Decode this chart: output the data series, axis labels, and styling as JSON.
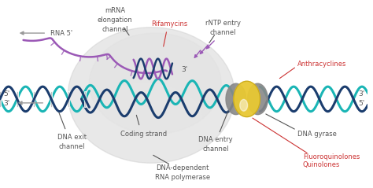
{
  "bg_color": "#f8f8f8",
  "labels": {
    "dna_exit_channel": "DNA exit\nchannel",
    "dna_dependent": "DNA-dependent\nRNA polymerase",
    "coding_strand": "Coding strand",
    "dna_entry_channel": "DNA entry\nchannel",
    "quinolones": "Quinolones",
    "fluoroquinolones": "Fluoroquinolones",
    "dna_gyrase": "DNA gyrase",
    "anthracyclines": "Anthracyclines",
    "rna_5prime": "RNA 5'",
    "mrna_elongation": "mRNA\nelongation\nchannel",
    "rifamycins": "Rifamycins",
    "rntp_entry": "rNTP entry\nchannel",
    "three_prime_left": "3'",
    "five_prime_left": "5'",
    "three_prime_center": "3'",
    "five_prime_right": "5'",
    "three_prime_right": "3'"
  },
  "colors": {
    "dark_blue": "#1b3d6e",
    "teal": "#1ab5b5",
    "purple": "#9b59b6",
    "gray_bubble": "#cccccc",
    "gray_bubble2": "#e0e0e0",
    "yellow_gyrase": "#e8c832",
    "gray_gyrase": "#909090",
    "red_label": "#cc3333",
    "gray_label": "#555555",
    "gray_arrow": "#999999",
    "rung_color": "#aaaaaa"
  },
  "helix": {
    "amplitude": 16,
    "wavelength": 44,
    "lw": 2.2
  }
}
